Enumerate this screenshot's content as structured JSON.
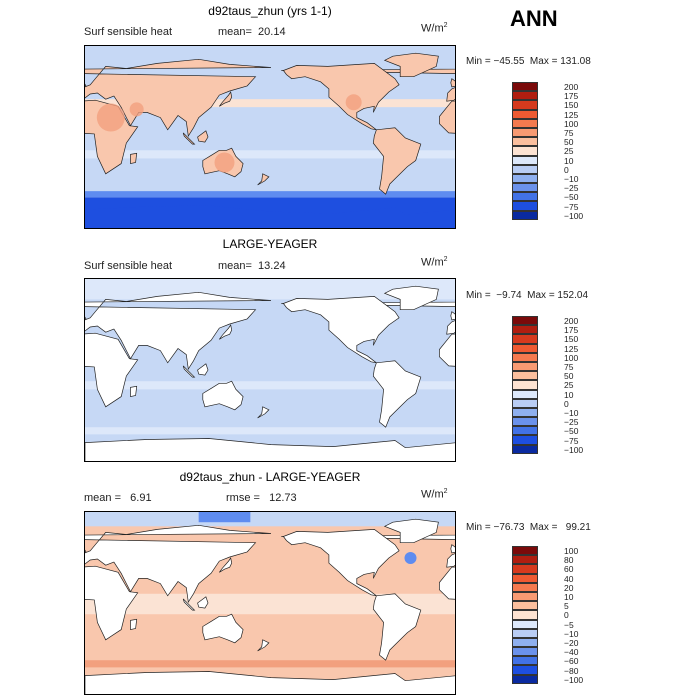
{
  "header": {
    "season": "ANN"
  },
  "colors": {
    "ocean_light": "#c6d8f5",
    "ocean_pale": "#dde8fa",
    "warm_light": "#f9c7ad",
    "warm_mid": "#f2a07e",
    "warm_pale": "#fbe3d4",
    "cold_dark": "#1e4fe0",
    "cold_mid": "#5f8cf0",
    "land_white": "#ffffff"
  },
  "panels": [
    {
      "title": "d92taus_zhun (yrs 1-1)",
      "subtitle_left": "Surf sensible heat",
      "stat_text": "mean=  20.14",
      "units_base": "W/m",
      "units_exp": "2",
      "minmax": "Min = −45.55  Max = 131.08",
      "colorbar": [
        "200",
        "175",
        "150",
        "125",
        "100",
        "75",
        "50",
        "25",
        "10",
        "0",
        "−10",
        "−25",
        "−50",
        "−75",
        "−100"
      ],
      "colorbar_colors": [
        "#7a0a0a",
        "#b01e10",
        "#d63a1e",
        "#ee5a32",
        "#f47a4f",
        "#f89a72",
        "#fbbf9e",
        "#fde3d2",
        "#dde8fa",
        "#b9cdf4",
        "#8fb0f0",
        "#6b92ec",
        "#4272e6",
        "#1e4fe0",
        "#0a2aa0"
      ],
      "land_fill": "warm",
      "stat_value": 20.14
    },
    {
      "title": "LARGE-YEAGER",
      "subtitle_left": "Surf sensible heat",
      "stat_text": "mean=  13.24",
      "units_base": "W/m",
      "units_exp": "2",
      "minmax": "Min =  −9.74  Max = 152.04",
      "colorbar": [
        "200",
        "175",
        "150",
        "125",
        "100",
        "75",
        "50",
        "25",
        "10",
        "0",
        "−10",
        "−25",
        "−50",
        "−75",
        "−100"
      ],
      "colorbar_colors": [
        "#7a0a0a",
        "#b01e10",
        "#d63a1e",
        "#ee5a32",
        "#f47a4f",
        "#f89a72",
        "#fbbf9e",
        "#fde3d2",
        "#dde8fa",
        "#b9cdf4",
        "#8fb0f0",
        "#6b92ec",
        "#4272e6",
        "#1e4fe0",
        "#0a2aa0"
      ],
      "land_fill": "white",
      "stat_value": 13.24
    },
    {
      "title": "d92taus_zhun - LARGE-YEAGER",
      "subtitle_left": "mean =   6.91",
      "stat_text": "rmse =   12.73",
      "units_base": "W/m",
      "units_exp": "2",
      "minmax": "Min = −76.73  Max =   99.21",
      "colorbar": [
        "100",
        "80",
        "60",
        "40",
        "20",
        "10",
        "5",
        "0",
        "−5",
        "−10",
        "−20",
        "−40",
        "−60",
        "−80",
        "−100"
      ],
      "colorbar_colors": [
        "#7a0a0a",
        "#b01e10",
        "#d63a1e",
        "#ee5a32",
        "#f47a4f",
        "#f89a72",
        "#fbbf9e",
        "#fde3d2",
        "#dde8fa",
        "#b9cdf4",
        "#8fb0f0",
        "#6b92ec",
        "#4272e6",
        "#1e4fe0",
        "#0a2aa0"
      ],
      "land_fill": "white",
      "stat_value": 6.91
    }
  ]
}
